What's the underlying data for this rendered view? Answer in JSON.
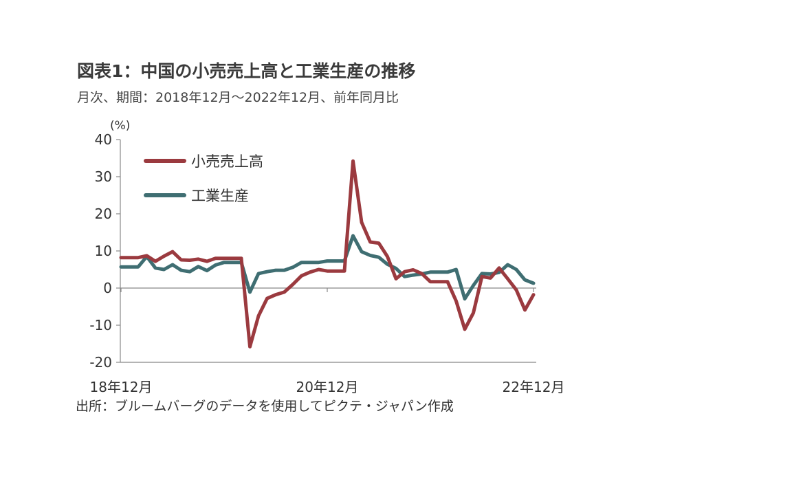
{
  "title": "図表1：中国の小売売上高と工業生産の推移",
  "subtitle": "月次、期間：2018年12月～2022年12月、前年同月比",
  "source": "出所：ブルームバーグのデータを使用してピクテ・ジャパン作成",
  "chart_data": {
    "type": "line",
    "unit": "(%)",
    "ylim": [
      -20,
      40
    ],
    "yticks": [
      40,
      30,
      20,
      10,
      0,
      -10,
      -20
    ],
    "xtick_labels": [
      {
        "index": 0,
        "label": "18年12月"
      },
      {
        "index": 24,
        "label": "20年12月"
      },
      {
        "index": 48,
        "label": "22年12月"
      }
    ],
    "grid": false,
    "legend_position": "top-left",
    "series": [
      {
        "name": "小売売上高",
        "color": "#9b3a3f",
        "values": [
          8.2,
          8.2,
          8.2,
          8.7,
          7.2,
          8.6,
          9.8,
          7.6,
          7.5,
          7.8,
          7.2,
          8.0,
          8.0,
          8.0,
          8.0,
          -15.8,
          -7.5,
          -2.8,
          -1.8,
          -1.1,
          1.0,
          3.3,
          4.3,
          5.0,
          4.6,
          4.6,
          4.6,
          34.2,
          17.7,
          12.4,
          12.1,
          8.5,
          2.5,
          4.4,
          4.9,
          3.9,
          1.7,
          1.7,
          1.7,
          -3.5,
          -11.1,
          -6.7,
          3.1,
          2.7,
          5.4,
          2.5,
          -0.5,
          -5.9,
          -1.8
        ]
      },
      {
        "name": "工業生産",
        "color": "#3f6e72",
        "values": [
          5.7,
          5.7,
          5.7,
          8.5,
          5.4,
          5.0,
          6.3,
          4.8,
          4.4,
          5.8,
          4.7,
          6.2,
          6.9,
          6.9,
          6.9,
          -1.1,
          3.9,
          4.4,
          4.8,
          4.8,
          5.6,
          6.9,
          6.9,
          6.9,
          7.3,
          7.3,
          7.3,
          14.1,
          9.8,
          8.8,
          8.3,
          6.4,
          5.3,
          3.1,
          3.5,
          3.8,
          4.3,
          4.3,
          4.3,
          5.0,
          -2.9,
          0.7,
          3.9,
          3.8,
          4.2,
          6.3,
          5.0,
          2.2,
          1.3
        ]
      }
    ]
  }
}
